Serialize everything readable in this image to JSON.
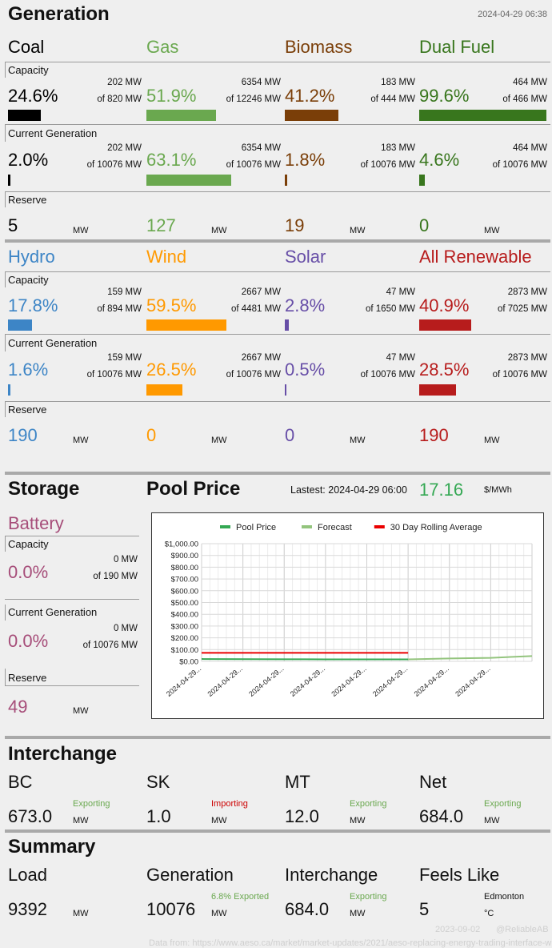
{
  "generation": {
    "title": "Generation",
    "timestamp": "2024-04-29 06:38",
    "labels": {
      "capacity": "Capacity",
      "current": "Current Generation",
      "reserve": "Reserve",
      "mw": "MW"
    },
    "rows": [
      [
        {
          "name": "Coal",
          "color": "#000000",
          "cap_pct": "24.6%",
          "cap_mw": "202 MW",
          "cap_of": "of 820 MW",
          "cap_frac": 0.246,
          "cur_pct": "2.0%",
          "cur_mw": "202 MW",
          "cur_of": "of 10076 MW",
          "cur_frac": 0.02,
          "reserve": "5"
        },
        {
          "name": "Gas",
          "color": "#6aa84f",
          "cap_pct": "51.9%",
          "cap_mw": "6354 MW",
          "cap_of": "of 12246 MW",
          "cap_frac": 0.519,
          "cur_pct": "63.1%",
          "cur_mw": "6354 MW",
          "cur_of": "of 10076 MW",
          "cur_frac": 0.631,
          "reserve": "127"
        },
        {
          "name": "Biomass",
          "color": "#7a3e08",
          "cap_pct": "41.2%",
          "cap_mw": "183 MW",
          "cap_of": "of 444 MW",
          "cap_frac": 0.412,
          "cur_pct": "1.8%",
          "cur_mw": "183 MW",
          "cur_of": "of 10076 MW",
          "cur_frac": 0.018,
          "reserve": "19"
        },
        {
          "name": "Dual Fuel",
          "color": "#38761d",
          "cap_pct": "99.6%",
          "cap_mw": "464 MW",
          "cap_of": "of 466 MW",
          "cap_frac": 0.996,
          "cur_pct": "4.6%",
          "cur_mw": "464 MW",
          "cur_of": "of 10076 MW",
          "cur_frac": 0.046,
          "reserve": "0"
        }
      ],
      [
        {
          "name": "Hydro",
          "color": "#3d85c6",
          "cap_pct": "17.8%",
          "cap_mw": "159 MW",
          "cap_of": "of 894 MW",
          "cap_frac": 0.178,
          "cur_pct": "1.6%",
          "cur_mw": "159 MW",
          "cur_of": "of 10076 MW",
          "cur_frac": 0.016,
          "reserve": "190"
        },
        {
          "name": "Wind",
          "color": "#ff9900",
          "cap_pct": "59.5%",
          "cap_mw": "2667 MW",
          "cap_of": "of 4481 MW",
          "cap_frac": 0.595,
          "cur_pct": "26.5%",
          "cur_mw": "2667 MW",
          "cur_of": "of 10076 MW",
          "cur_frac": 0.265,
          "reserve": "0"
        },
        {
          "name": "Solar",
          "color": "#674ea7",
          "cap_pct": "2.8%",
          "cap_mw": "47 MW",
          "cap_of": "of 1650 MW",
          "cap_frac": 0.028,
          "cur_pct": "0.5%",
          "cur_mw": "47 MW",
          "cur_of": "of 10076 MW",
          "cur_frac": 0.005,
          "reserve": "0"
        },
        {
          "name": "All Renewable",
          "color": "#b71c1c",
          "cap_pct": "40.9%",
          "cap_mw": "2873 MW",
          "cap_of": "of 7025 MW",
          "cap_frac": 0.409,
          "cur_pct": "28.5%",
          "cur_mw": "2873 MW",
          "cur_of": "of 10076 MW",
          "cur_frac": 0.285,
          "reserve": "190"
        }
      ]
    ]
  },
  "storage": {
    "title": "Storage",
    "name": "Battery",
    "color": "#a64d79",
    "capacity_label": "Capacity",
    "cap_pct": "0.0%",
    "cap_mw": "0 MW",
    "cap_of": "of 190 MW",
    "current_label": "Current Generation",
    "cur_pct": "0.0%",
    "cur_mw": "0 MW",
    "cur_of": "of 10076 MW",
    "reserve_label": "Reserve",
    "reserve": "49",
    "unit": "MW"
  },
  "pool_price": {
    "title": "Pool Price",
    "latest_label": "Lastest: 2024-04-29 06:00",
    "value": "17.16",
    "value_color": "#34a853",
    "unit": "$/MWh"
  },
  "chart_data": {
    "type": "line",
    "legend_position": "top",
    "grid": true,
    "ylim": [
      0,
      1000
    ],
    "y_ticks": [
      "$0.00",
      "$100.00",
      "$200.00",
      "$300.00",
      "$400.00",
      "$500.00",
      "$600.00",
      "$700.00",
      "$800.00",
      "$900.00",
      "$1,000.00"
    ],
    "x_ticks": [
      "2024-04-29...",
      "2024-04-29...",
      "2024-04-29...",
      "2024-04-29...",
      "2024-04-29...",
      "2024-04-29...",
      "2024-04-29...",
      "2024-04-29..."
    ],
    "series": [
      {
        "name": "Pool Price",
        "color": "#34a853",
        "x": [
          0,
          1,
          2,
          3,
          4,
          5
        ],
        "values": [
          20,
          19,
          18,
          17,
          17,
          17
        ]
      },
      {
        "name": "Forecast",
        "color": "#93c47d",
        "x": [
          5,
          6,
          7,
          8
        ],
        "values": [
          17,
          25,
          30,
          45
        ]
      },
      {
        "name": "30 Day Rolling Average",
        "color": "#ea0000",
        "x": [
          0,
          1,
          2,
          3,
          4,
          5
        ],
        "values": [
          72,
          72,
          72,
          72,
          72,
          72
        ]
      }
    ]
  },
  "interchange": {
    "title": "Interchange",
    "unit": "MW",
    "items": [
      {
        "name": "BC",
        "value": "673.0",
        "status": "Exporting",
        "status_color": "#6aa84f"
      },
      {
        "name": "SK",
        "value": "1.0",
        "status": "Importing",
        "status_color": "#cc0000"
      },
      {
        "name": "MT",
        "value": "12.0",
        "status": "Exporting",
        "status_color": "#6aa84f"
      },
      {
        "name": "Net",
        "value": "684.0",
        "status": "Exporting",
        "status_color": "#6aa84f"
      }
    ]
  },
  "summary": {
    "title": "Summary",
    "items": [
      {
        "name": "Load",
        "value": "9392",
        "note": "",
        "unit": "MW"
      },
      {
        "name": "Generation",
        "value": "10076",
        "note": "6.8% Exported",
        "unit": "MW"
      },
      {
        "name": "Interchange",
        "value": "684.0",
        "note": "Exporting",
        "unit": "MW"
      },
      {
        "name": "Feels Like",
        "value": "5",
        "note": "Edmonton",
        "unit": "°C"
      }
    ],
    "note_color": "#6aa84f"
  },
  "footer": {
    "date": "2023-09-02",
    "handle": "@ReliableAB",
    "data_from": "Data from: https://www.aeso.ca/market/market-updates/2021/aeso-replacing-energy-trading-interface-w"
  }
}
